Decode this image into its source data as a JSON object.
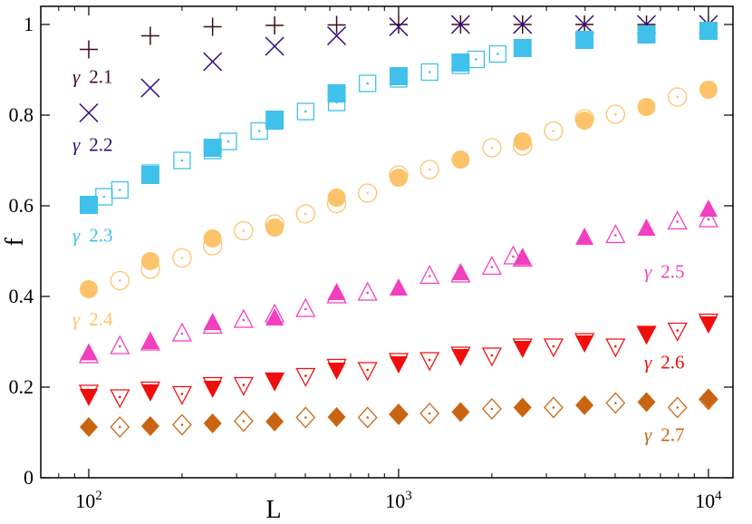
{
  "chart_data": {
    "type": "scatter",
    "title": "",
    "xlabel": "L",
    "ylabel": "f",
    "xscale": "log",
    "xlim": [
      70,
      12000
    ],
    "ylim": [
      0,
      1.04
    ],
    "x_major_ticks": [
      100,
      1000,
      10000
    ],
    "x_tick_labels": [
      {
        "base": "10",
        "exp": "2"
      },
      {
        "base": "10",
        "exp": "3"
      },
      {
        "base": "10",
        "exp": "4"
      }
    ],
    "y_ticks": [
      0,
      0.2,
      0.4,
      0.6,
      0.8,
      1
    ],
    "y_tick_labels": [
      "0",
      "0.2",
      "0.4",
      "0.6",
      "0.8",
      "1"
    ],
    "grid": false,
    "legend": "inline labels",
    "series": [
      {
        "name": "γ 2.1",
        "label_symbol": "γ",
        "label_value": "2.1",
        "label_anchor": [
          100,
          0.885
        ],
        "color": "#3d0c11",
        "filled": {
          "marker": "plus",
          "points": [
            [
              100,
              0.945
            ],
            [
              158,
              0.975
            ],
            [
              251,
              0.995
            ],
            [
              398,
              0.998
            ],
            [
              631,
              0.999
            ],
            [
              1000,
              1.0
            ],
            [
              1585,
              1.0
            ],
            [
              2512,
              1.0
            ],
            [
              3981,
              1.0
            ],
            [
              6310,
              1.0
            ],
            [
              10000,
              1.0
            ]
          ]
        },
        "open": {
          "marker": "none",
          "points": []
        }
      },
      {
        "name": "γ 2.2",
        "label_symbol": "γ",
        "label_value": "2.2",
        "label_anchor": [
          100,
          0.735
        ],
        "color": "#2e0a82",
        "filled": {
          "marker": "cross",
          "points": [
            [
              100,
              0.805
            ],
            [
              158,
              0.86
            ],
            [
              251,
              0.918
            ],
            [
              398,
              0.952
            ],
            [
              631,
              0.975
            ],
            [
              1000,
              0.995
            ],
            [
              1585,
              1.0
            ],
            [
              2512,
              1.0
            ],
            [
              3981,
              1.0
            ],
            [
              6310,
              1.0
            ],
            [
              10000,
              1.0
            ]
          ]
        },
        "open": {
          "marker": "none",
          "points": []
        }
      },
      {
        "name": "γ 2.3",
        "label_symbol": "γ",
        "label_value": "2.3",
        "label_anchor": [
          100,
          0.535
        ],
        "color": "#3fc1ec",
        "filled": {
          "marker": "square",
          "points": [
            [
              100,
              0.602
            ],
            [
              158,
              0.668
            ],
            [
              251,
              0.728
            ],
            [
              398,
              0.79
            ],
            [
              631,
              0.848
            ],
            [
              1000,
              0.886
            ],
            [
              1585,
              0.916
            ],
            [
              2512,
              0.948
            ],
            [
              3981,
              0.966
            ],
            [
              6310,
              0.978
            ],
            [
              10000,
              0.986
            ]
          ]
        },
        "open": {
          "marker": "square-dot",
          "points": [
            [
              112,
              0.62
            ],
            [
              126,
              0.635
            ],
            [
              158,
              0.672
            ],
            [
              200,
              0.7
            ],
            [
              251,
              0.722
            ],
            [
              282,
              0.742
            ],
            [
              355,
              0.765
            ],
            [
              398,
              0.787
            ],
            [
              501,
              0.808
            ],
            [
              631,
              0.828
            ],
            [
              794,
              0.87
            ],
            [
              1000,
              0.88
            ],
            [
              1259,
              0.895
            ],
            [
              1585,
              0.91
            ],
            [
              1778,
              0.923
            ],
            [
              2089,
              0.935
            ]
          ]
        }
      },
      {
        "name": "γ 2.4",
        "label_symbol": "γ",
        "label_value": "2.4",
        "label_anchor": [
          100,
          0.35
        ],
        "color": "#fcc36a",
        "filled": {
          "marker": "circle",
          "points": [
            [
              100,
              0.416
            ],
            [
              158,
              0.478
            ],
            [
              251,
              0.528
            ],
            [
              398,
              0.552
            ],
            [
              631,
              0.618
            ],
            [
              1000,
              0.662
            ],
            [
              1585,
              0.702
            ],
            [
              2512,
              0.742
            ],
            [
              3981,
              0.788
            ],
            [
              6310,
              0.818
            ],
            [
              10000,
              0.856
            ]
          ]
        },
        "open": {
          "marker": "circle-dot",
          "points": [
            [
              126,
              0.435
            ],
            [
              158,
              0.46
            ],
            [
              200,
              0.485
            ],
            [
              251,
              0.512
            ],
            [
              316,
              0.545
            ],
            [
              398,
              0.56
            ],
            [
              501,
              0.582
            ],
            [
              631,
              0.605
            ],
            [
              794,
              0.628
            ],
            [
              1000,
              0.668
            ],
            [
              1259,
              0.68
            ],
            [
              2000,
              0.728
            ],
            [
              2512,
              0.732
            ],
            [
              3162,
              0.765
            ],
            [
              3981,
              0.792
            ],
            [
              5012,
              0.802
            ],
            [
              7943,
              0.84
            ]
          ]
        }
      },
      {
        "name": "γ 2.5",
        "label_symbol": "γ",
        "label_value": "2.5",
        "label_anchor": [
          7000,
          0.455
        ],
        "color": "#f23fbf",
        "filled": {
          "marker": "triangle-up",
          "points": [
            [
              100,
              0.275
            ],
            [
              158,
              0.3
            ],
            [
              251,
              0.342
            ],
            [
              398,
              0.352
            ],
            [
              631,
              0.408
            ],
            [
              1000,
              0.418
            ],
            [
              1585,
              0.452
            ],
            [
              2512,
              0.485
            ],
            [
              3981,
              0.53
            ],
            [
              6310,
              0.55
            ],
            [
              10000,
              0.592
            ]
          ]
        },
        "open": {
          "marker": "triangle-up-dot",
          "points": [
            [
              100,
              0.27
            ],
            [
              126,
              0.29
            ],
            [
              158,
              0.298
            ],
            [
              200,
              0.318
            ],
            [
              251,
              0.335
            ],
            [
              316,
              0.348
            ],
            [
              398,
              0.36
            ],
            [
              501,
              0.372
            ],
            [
              631,
              0.402
            ],
            [
              794,
              0.408
            ],
            [
              1259,
              0.445
            ],
            [
              1585,
              0.448
            ],
            [
              2000,
              0.465
            ],
            [
              2344,
              0.488
            ],
            [
              2512,
              0.483
            ],
            [
              5012,
              0.535
            ],
            [
              7943,
              0.565
            ],
            [
              10000,
              0.57
            ]
          ]
        }
      },
      {
        "name": "γ 2.6",
        "label_symbol": "γ",
        "label_value": "2.6",
        "label_anchor": [
          7000,
          0.255
        ],
        "color": "#f20d0d",
        "filled": {
          "marker": "triangle-down",
          "points": [
            [
              100,
              0.18
            ],
            [
              158,
              0.19
            ],
            [
              251,
              0.198
            ],
            [
              398,
              0.215
            ],
            [
              631,
              0.238
            ],
            [
              1000,
              0.252
            ],
            [
              1585,
              0.268
            ],
            [
              2512,
              0.286
            ],
            [
              3981,
              0.298
            ],
            [
              6310,
              0.318
            ],
            [
              10000,
              0.34
            ]
          ]
        },
        "open": {
          "marker": "triangle-down-dot",
          "points": [
            [
              100,
              0.188
            ],
            [
              126,
              0.178
            ],
            [
              158,
              0.195
            ],
            [
              200,
              0.185
            ],
            [
              251,
              0.205
            ],
            [
              316,
              0.205
            ],
            [
              398,
              0.215
            ],
            [
              501,
              0.225
            ],
            [
              631,
              0.245
            ],
            [
              794,
              0.238
            ],
            [
              1000,
              0.258
            ],
            [
              1259,
              0.26
            ],
            [
              1585,
              0.272
            ],
            [
              2000,
              0.27
            ],
            [
              2512,
              0.29
            ],
            [
              3162,
              0.29
            ],
            [
              3981,
              0.302
            ],
            [
              5012,
              0.29
            ],
            [
              6310,
              0.318
            ],
            [
              7943,
              0.325
            ],
            [
              10000,
              0.345
            ]
          ]
        }
      },
      {
        "name": "γ 2.7",
        "label_symbol": "γ",
        "label_value": "2.7",
        "label_anchor": [
          7000,
          0.095
        ],
        "color": "#c96410",
        "filled": {
          "marker": "diamond",
          "points": [
            [
              100,
              0.112
            ],
            [
              158,
              0.114
            ],
            [
              251,
              0.12
            ],
            [
              398,
              0.124
            ],
            [
              631,
              0.134
            ],
            [
              1000,
              0.14
            ],
            [
              1585,
              0.145
            ],
            [
              2512,
              0.155
            ],
            [
              3981,
              0.16
            ],
            [
              6310,
              0.167
            ],
            [
              10000,
              0.175
            ]
          ]
        },
        "open": {
          "marker": "diamond-dot",
          "points": [
            [
              126,
              0.112
            ],
            [
              200,
              0.117
            ],
            [
              316,
              0.125
            ],
            [
              501,
              0.133
            ],
            [
              794,
              0.133
            ],
            [
              1000,
              0.14
            ],
            [
              1259,
              0.142
            ],
            [
              2000,
              0.152
            ],
            [
              3162,
              0.155
            ],
            [
              5012,
              0.165
            ],
            [
              7943,
              0.155
            ],
            [
              10000,
              0.173
            ]
          ]
        }
      }
    ]
  }
}
